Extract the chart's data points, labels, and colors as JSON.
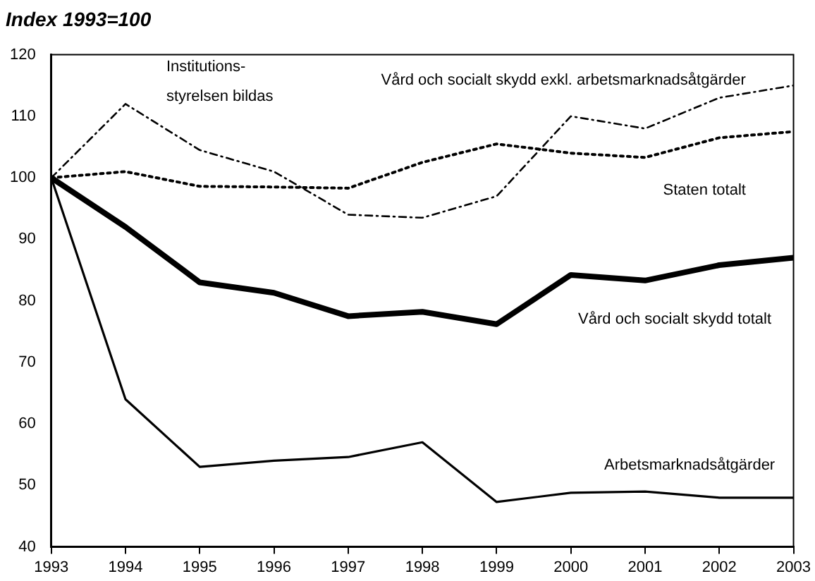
{
  "chart_data": {
    "type": "line",
    "title": "Index 1993=100",
    "x": [
      1993,
      1994,
      1995,
      1996,
      1997,
      1998,
      1999,
      2000,
      2001,
      2002,
      2003
    ],
    "series": [
      {
        "name": "Vård och socialt skydd exkl. arbetsmarknadsåtgärder",
        "color": "#000000",
        "line_style": "dashed",
        "values": [
          100,
          112,
          104.5,
          101,
          94,
          93.5,
          97,
          110,
          108,
          113,
          115
        ]
      },
      {
        "name": "Staten totalt",
        "color": "#000000",
        "line_style": "dotted",
        "values": [
          100,
          101,
          98.6,
          98.5,
          98.3,
          102.5,
          105.5,
          104,
          103.3,
          106.5,
          107.5
        ]
      },
      {
        "name": "Vård och socialt skydd totalt",
        "color": "#000000",
        "line_style": "solid",
        "values": [
          100,
          92,
          83,
          81.3,
          77.5,
          78.2,
          76.2,
          84.2,
          83.3,
          85.8,
          87
        ]
      },
      {
        "name": "Arbetsmarknadsåtgärder",
        "color": "#000000",
        "line_style": "solid",
        "values": [
          100,
          64,
          53,
          54,
          54.6,
          57,
          47.3,
          48.8,
          49,
          48,
          48
        ]
      }
    ],
    "xlim": [
      1993,
      2003
    ],
    "xticks": [
      1993,
      1994,
      1995,
      1996,
      1997,
      1998,
      1999,
      2000,
      2001,
      2002,
      2003
    ],
    "ylim": [
      40,
      120
    ],
    "yticks": [
      40,
      50,
      60,
      70,
      80,
      90,
      100,
      110,
      120
    ],
    "grid": false,
    "legend": false,
    "marker": "none",
    "annotations": [
      "Institutions-\nstyrelsen bildas"
    ]
  }
}
